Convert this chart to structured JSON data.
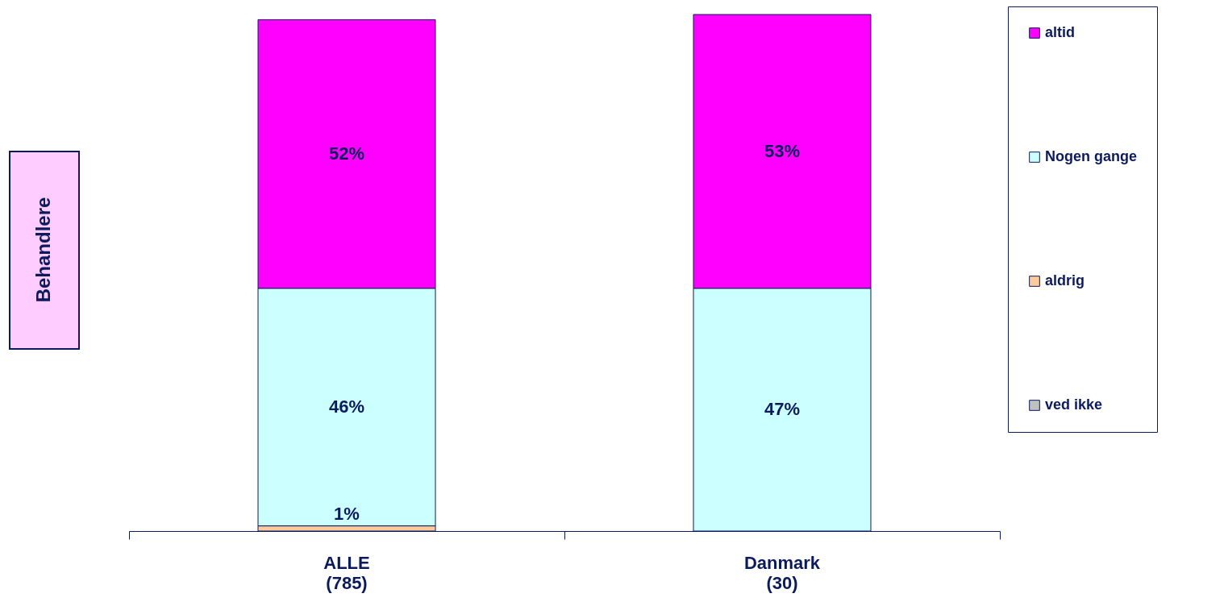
{
  "chart_data": {
    "type": "bar",
    "stacked": true,
    "ylabel": "Behandlere",
    "categories": [
      "ALLE\n(785)",
      "Danmark\n(30)"
    ],
    "series": [
      {
        "name": "ved ikke",
        "color": "#c0c0c0",
        "values": [
          null,
          null
        ],
        "value_labels": [
          null,
          null
        ]
      },
      {
        "name": "aldrig",
        "color": "#ffcc99",
        "values": [
          1,
          null
        ],
        "value_labels": [
          "1%",
          null
        ]
      },
      {
        "name": "Nogen gange",
        "color": "#ccffff",
        "values": [
          46,
          47
        ],
        "value_labels": [
          "46%",
          "47%"
        ]
      },
      {
        "name": "altid",
        "color": "#ff00ff",
        "values": [
          52,
          53
        ],
        "value_labels": [
          "52%",
          "53%"
        ]
      }
    ],
    "legend": "right",
    "tick_labels": "x"
  }
}
